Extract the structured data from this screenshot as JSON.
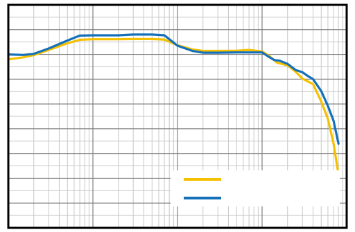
{
  "chart_data": {
    "type": "line",
    "title": "",
    "xlabel": "",
    "ylabel": "",
    "x_scale": "log",
    "xlim": [
      1,
      10000
    ],
    "ylim": [
      -8,
      1
    ],
    "grid": true,
    "legend_placement": "bottom-right",
    "series": [
      {
        "color": "#F5C000",
        "x": [
          1,
          1.5,
          2,
          3,
          5,
          7,
          10,
          20,
          30,
          50,
          70,
          100,
          150,
          200,
          300,
          500,
          700,
          1000,
          1200,
          1500,
          2000,
          2500,
          3000,
          4000,
          5000,
          6000,
          7000,
          8000
        ],
        "y": [
          -1.2,
          -1.12,
          -1.03,
          -0.82,
          -0.55,
          -0.41,
          -0.39,
          -0.39,
          -0.38,
          -0.38,
          -0.4,
          -0.63,
          -0.8,
          -0.86,
          -0.86,
          -0.85,
          -0.82,
          -0.88,
          -1.05,
          -1.33,
          -1.44,
          -1.7,
          -1.98,
          -2.2,
          -2.9,
          -3.6,
          -4.6,
          -5.85
        ]
      },
      {
        "color": "#1470B8",
        "x": [
          1,
          1.5,
          2,
          3,
          5,
          7,
          10,
          20,
          30,
          50,
          70,
          100,
          150,
          200,
          300,
          500,
          700,
          1000,
          1200,
          1400,
          1600,
          2000,
          2500,
          3000,
          3500,
          4000,
          5000,
          6000,
          7000,
          8000
        ],
        "y": [
          -1.0,
          -1.02,
          -0.98,
          -0.76,
          -0.44,
          -0.24,
          -0.23,
          -0.23,
          -0.2,
          -0.2,
          -0.23,
          -0.65,
          -0.86,
          -0.93,
          -0.93,
          -0.92,
          -0.92,
          -0.92,
          -1.1,
          -1.23,
          -1.25,
          -1.38,
          -1.63,
          -1.72,
          -1.88,
          -2.0,
          -2.48,
          -3.08,
          -3.68,
          -4.6
        ]
      }
    ]
  }
}
